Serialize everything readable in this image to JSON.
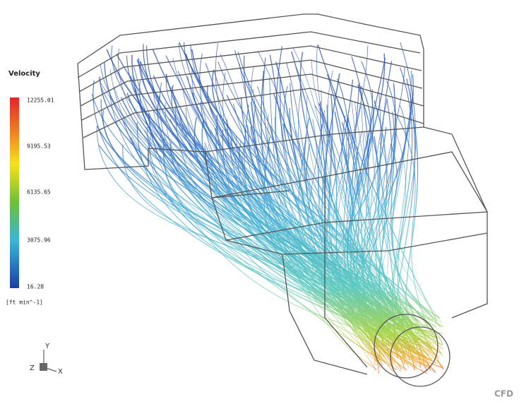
{
  "legend": {
    "title": "Velocity",
    "labels": [
      "12255.01",
      "9195.53",
      "6135.65",
      "3075.96",
      "16.28"
    ],
    "unit": "[ft min^-1]"
  },
  "axes": {
    "y": "Y",
    "z": "Z",
    "x": "X"
  },
  "watermark": "CFD"
}
